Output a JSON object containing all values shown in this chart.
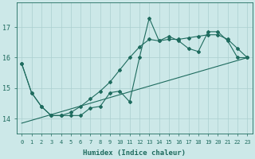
{
  "xlabel": "Humidex (Indice chaleur)",
  "x": [
    0,
    1,
    2,
    3,
    4,
    5,
    6,
    7,
    8,
    9,
    10,
    11,
    12,
    13,
    14,
    15,
    16,
    17,
    18,
    19,
    20,
    21,
    22,
    23
  ],
  "y_jagged": [
    15.8,
    14.85,
    14.4,
    14.1,
    14.1,
    14.1,
    14.1,
    14.35,
    14.4,
    14.85,
    14.9,
    14.55,
    16.0,
    17.3,
    16.55,
    16.7,
    16.55,
    16.3,
    16.2,
    16.85,
    16.85,
    16.55,
    16.0,
    16.0
  ],
  "y_smooth": [
    15.8,
    14.85,
    14.4,
    14.1,
    14.1,
    14.2,
    14.4,
    14.65,
    14.9,
    15.2,
    15.6,
    16.0,
    16.35,
    16.6,
    16.55,
    16.6,
    16.6,
    16.65,
    16.7,
    16.75,
    16.75,
    16.6,
    16.3,
    16.0
  ],
  "y_trend_start": 13.85,
  "y_trend_end": 16.0,
  "line_color": "#1e6b5e",
  "bg_color": "#cce8e8",
  "grid_color": "#aacfcf",
  "ylim": [
    13.5,
    17.8
  ],
  "yticks": [
    14,
    15,
    16,
    17
  ],
  "xticks": [
    0,
    1,
    2,
    3,
    4,
    5,
    6,
    7,
    8,
    9,
    10,
    11,
    12,
    13,
    14,
    15,
    16,
    17,
    18,
    19,
    20,
    21,
    22,
    23
  ],
  "marker": "D",
  "markersize": 2.0
}
